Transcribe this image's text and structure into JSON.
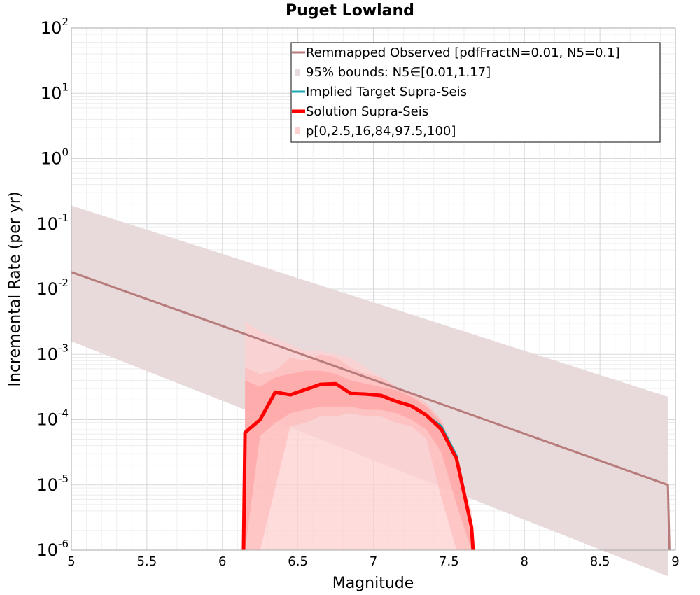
{
  "chart_data": {
    "type": "line",
    "title": "Puget Lowland",
    "xlabel": "Magnitude",
    "ylabel": "Incremental Rate (per yr)",
    "xlim": [
      5,
      9
    ],
    "ylim_log10": [
      -6,
      2
    ],
    "yscale": "log",
    "grid": true,
    "x_ticks": [
      "5",
      "5.5",
      "6",
      "6.5",
      "7",
      "7.5",
      "8",
      "8.5",
      "9"
    ],
    "y_ticks": [
      {
        "base": "10",
        "exp": "2"
      },
      {
        "base": "10",
        "exp": "1"
      },
      {
        "base": "10",
        "exp": "0"
      },
      {
        "base": "10",
        "exp": "-1"
      },
      {
        "base": "10",
        "exp": "-2"
      },
      {
        "base": "10",
        "exp": "-3"
      },
      {
        "base": "10",
        "exp": "-4"
      },
      {
        "base": "10",
        "exp": "-5"
      },
      {
        "base": "10",
        "exp": "-6"
      }
    ],
    "legend_position": "top-right",
    "legend": [
      {
        "label": "Remmapped Observed [pdfFractN=0.01, N5=0.1]",
        "color": "#b87b7b",
        "kind": "line"
      },
      {
        "label": "95% bounds: N5∈[0.01,1.17]",
        "color": "#e8d9da",
        "kind": "patch"
      },
      {
        "label": "Implied Target Supra-Seis",
        "color": "#1aa7b0",
        "kind": "line"
      },
      {
        "label": "Solution Supra-Seis",
        "color": "#ff0000",
        "kind": "thickline"
      },
      {
        "label": "p[0,2.5,16,84,97.5,100]",
        "color": "#ffd0d0",
        "kind": "patch"
      }
    ],
    "series": [
      {
        "name": "Remmapped Observed",
        "color": "#b87b7b",
        "x": [
          5.0,
          8.95,
          8.96
        ],
        "y_log10": [
          -1.74,
          -5.0,
          -6.0
        ]
      },
      {
        "name": "95% bounds",
        "color": "#e8d9da",
        "x": [
          5.0,
          8.95
        ],
        "lower_log10": [
          -2.8,
          -6.4
        ],
        "upper_log10": [
          -0.72,
          -3.65
        ]
      },
      {
        "name": "Implied Target Supra-Seis",
        "color": "#1aa7b0",
        "x": [
          6.15,
          6.25,
          6.35,
          6.45,
          6.55,
          6.65,
          6.75,
          6.85,
          6.95,
          7.05,
          7.15,
          7.25,
          7.35,
          7.45,
          7.55,
          7.65
        ],
        "y_log10": [
          -4.2,
          -4.0,
          -3.58,
          -3.62,
          -3.54,
          -3.46,
          -3.45,
          -3.6,
          -3.61,
          -3.63,
          -3.72,
          -3.79,
          -3.93,
          -4.1,
          -4.55,
          -5.6
        ]
      },
      {
        "name": "Solution Supra-Seis",
        "color": "#ff0000",
        "x": [
          6.14,
          6.15,
          6.25,
          6.35,
          6.45,
          6.55,
          6.65,
          6.75,
          6.85,
          6.95,
          7.05,
          7.15,
          7.25,
          7.35,
          7.45,
          7.55,
          7.65,
          7.66
        ],
        "y_log10": [
          -6.0,
          -4.2,
          -4.0,
          -3.58,
          -3.62,
          -3.54,
          -3.46,
          -3.45,
          -3.6,
          -3.61,
          -3.63,
          -3.72,
          -3.79,
          -3.93,
          -4.15,
          -4.6,
          -5.65,
          -6.0
        ]
      },
      {
        "name": "p[0,100]",
        "color": "#ffd0d0",
        "x": [
          6.15,
          6.25,
          6.35,
          6.45,
          6.55,
          6.65,
          6.75,
          6.85,
          6.95,
          7.05,
          7.15,
          7.25,
          7.35,
          7.45,
          7.55,
          7.65
        ],
        "lower_log10": [
          -6,
          -6,
          -6,
          -6,
          -6,
          -6,
          -6,
          -6,
          -6,
          -6,
          -6,
          -6,
          -6,
          -6,
          -6,
          -6
        ],
        "upper_log10": [
          -2.5,
          -2.65,
          -2.75,
          -2.85,
          -2.95,
          -2.95,
          -3.0,
          -3.05,
          -3.2,
          -3.35,
          -3.5,
          -3.6,
          -3.75,
          -4.05,
          -4.6,
          -5.4
        ]
      },
      {
        "name": "p[2.5,97.5]",
        "color": "#ffb8b8",
        "x": [
          6.15,
          6.25,
          6.35,
          6.45,
          6.55,
          6.65,
          6.75,
          6.85,
          6.95,
          7.05,
          7.15,
          7.25,
          7.35,
          7.45,
          7.55,
          7.65
        ],
        "lower_log10": [
          -6,
          -6,
          -5.05,
          -4.1,
          -4.05,
          -3.95,
          -3.95,
          -3.9,
          -3.95,
          -3.95,
          -4.05,
          -4.1,
          -4.3,
          -5.2,
          -6,
          -6
        ],
        "upper_log10": [
          -3.2,
          -3.3,
          -3.25,
          -3.05,
          -3.1,
          -3.0,
          -3.05,
          -3.2,
          -3.3,
          -3.35,
          -3.5,
          -3.6,
          -3.75,
          -4.0,
          -4.55,
          -5.55
        ]
      },
      {
        "name": "p[16,84]",
        "color": "#ff9a9a",
        "x": [
          6.15,
          6.25,
          6.35,
          6.45,
          6.55,
          6.65,
          6.75,
          6.85,
          6.95,
          7.05,
          7.15,
          7.25,
          7.35,
          7.45,
          7.55,
          7.65
        ],
        "lower_log10": [
          -6,
          -4.25,
          -4.05,
          -3.9,
          -3.85,
          -3.8,
          -3.8,
          -3.8,
          -3.85,
          -3.85,
          -3.9,
          -4.0,
          -4.15,
          -4.5,
          -5.3,
          -6
        ],
        "upper_log10": [
          -3.4,
          -3.5,
          -3.35,
          -3.3,
          -3.25,
          -3.25,
          -3.3,
          -3.4,
          -3.45,
          -3.5,
          -3.55,
          -3.65,
          -3.8,
          -4.05,
          -4.55,
          -5.55
        ]
      }
    ]
  }
}
